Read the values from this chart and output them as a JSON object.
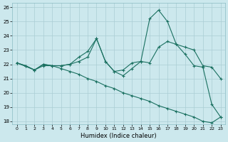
{
  "xlabel": "Humidex (Indice chaleur)",
  "bg_color": "#cce8ed",
  "grid_color": "#aacdd4",
  "line_color": "#1a7060",
  "xlim": [
    -0.5,
    23.5
  ],
  "ylim": [
    17.8,
    26.3
  ],
  "xticks": [
    0,
    1,
    2,
    3,
    4,
    5,
    6,
    7,
    8,
    9,
    10,
    11,
    12,
    13,
    14,
    15,
    16,
    17,
    18,
    19,
    20,
    21,
    22,
    23
  ],
  "yticks": [
    18,
    19,
    20,
    21,
    22,
    23,
    24,
    25,
    26
  ],
  "line1_x": [
    0,
    1,
    2,
    3,
    4,
    5,
    6,
    7,
    8,
    9,
    10,
    11,
    12,
    13,
    14,
    15,
    16,
    17,
    18,
    19,
    20,
    21,
    22,
    23
  ],
  "line1_y": [
    22.1,
    21.9,
    21.6,
    22.0,
    21.9,
    21.9,
    22.0,
    22.5,
    22.9,
    23.8,
    22.2,
    21.5,
    21.2,
    21.7,
    22.2,
    25.2,
    25.8,
    25.0,
    23.4,
    22.7,
    21.9,
    21.8,
    19.2,
    18.3
  ],
  "line2_x": [
    0,
    2,
    3,
    4,
    5,
    6,
    7,
    8,
    9,
    10,
    11,
    12,
    13,
    14,
    15,
    16,
    17,
    18,
    19,
    20,
    21,
    22,
    23
  ],
  "line2_y": [
    22.1,
    21.6,
    22.0,
    21.9,
    21.9,
    22.0,
    22.2,
    22.5,
    23.8,
    22.2,
    21.5,
    21.6,
    22.1,
    22.2,
    22.1,
    23.2,
    23.6,
    23.4,
    23.2,
    23.0,
    21.9,
    21.8,
    21.0
  ],
  "line3_x": [
    0,
    1,
    2,
    3,
    4,
    5,
    6,
    7,
    8,
    9,
    10,
    11,
    12,
    13,
    14,
    15,
    16,
    17,
    18,
    19,
    20,
    21,
    22,
    23
  ],
  "line3_y": [
    22.1,
    21.9,
    21.6,
    21.9,
    21.9,
    21.7,
    21.5,
    21.3,
    21.0,
    20.8,
    20.5,
    20.3,
    20.0,
    19.8,
    19.6,
    19.4,
    19.1,
    18.9,
    18.7,
    18.5,
    18.3,
    18.0,
    17.9,
    18.3
  ]
}
